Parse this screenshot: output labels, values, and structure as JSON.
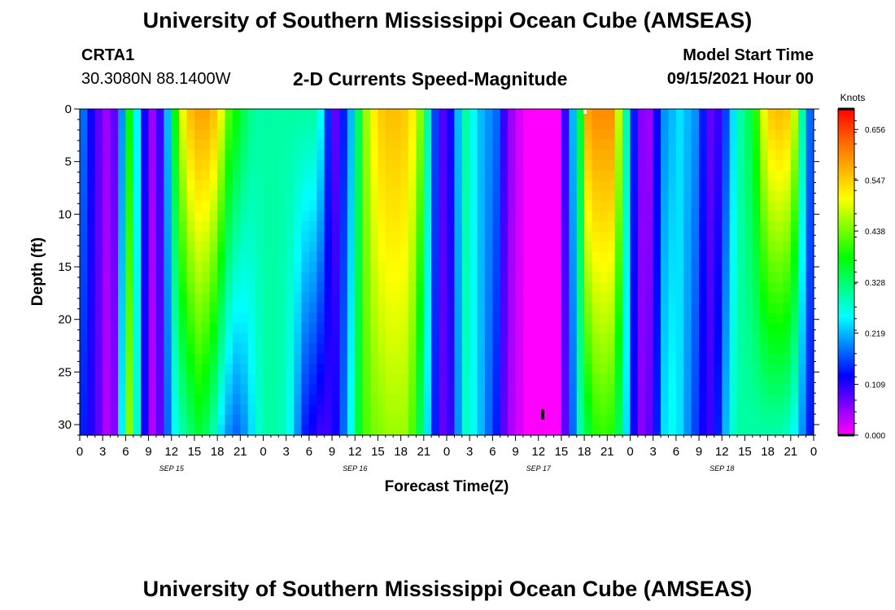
{
  "header": {
    "title": "University of Southern Mississippi Ocean Cube (AMSEAS)",
    "station": "CRTA1",
    "location": "30.3080N  88.1400W",
    "plot_title": "2-D Currents Speed-Magnitude",
    "model_start_label": "Model Start Time",
    "model_start_value": "09/15/2021 Hour 00"
  },
  "footer": {
    "title": "University of Southern Mississippi Ocean Cube (AMSEAS)"
  },
  "chart_data": {
    "type": "heatmap",
    "title": "2-D Currents Speed-Magnitude",
    "xlabel": "Forecast Time(Z)",
    "ylabel": "Depth (ft)",
    "colorbar_label": "Knots",
    "x_range_hours": [
      0,
      96
    ],
    "y_range_ft": [
      0,
      31
    ],
    "y_inverted": true,
    "x_tick_labels": [
      "0",
      "3",
      "6",
      "9",
      "12",
      "15",
      "18",
      "21",
      "0",
      "3",
      "6",
      "9",
      "12",
      "15",
      "18",
      "21",
      "0",
      "3",
      "6",
      "9",
      "12",
      "15",
      "18",
      "21",
      "0",
      "3",
      "6",
      "9",
      "12",
      "15",
      "18",
      "21",
      "0"
    ],
    "y_ticks": [
      0,
      5,
      10,
      15,
      20,
      25,
      30
    ],
    "date_labels": [
      {
        "label": "SEP 15",
        "hour": 12
      },
      {
        "label": "SEP 16",
        "hour": 36
      },
      {
        "label": "SEP 17",
        "hour": 60
      },
      {
        "label": "SEP 18",
        "hour": 84
      }
    ],
    "colorbar_ticks": [
      "0.000",
      "0.109",
      "0.219",
      "0.328",
      "0.438",
      "0.547",
      "0.656"
    ],
    "colorbar_range": [
      0,
      0.7
    ],
    "colorscale": [
      "#ff00ff",
      "#8000ff",
      "#0000ff",
      "#0080ff",
      "#00ffff",
      "#00ff80",
      "#00ff00",
      "#80ff00",
      "#ffff00",
      "#ffb000",
      "#ff6000",
      "#ff0000"
    ],
    "speed_hourly_surface": [
      0.18,
      0.12,
      0.08,
      0.05,
      0.08,
      0.2,
      0.38,
      0.25,
      0.12,
      0.05,
      0.1,
      0.22,
      0.38,
      0.5,
      0.56,
      0.58,
      0.58,
      0.56,
      0.5,
      0.42,
      0.38,
      0.34,
      0.31,
      0.3,
      0.3,
      0.3,
      0.3,
      0.3,
      0.3,
      0.3,
      0.3,
      0.26,
      0.15,
      0.08,
      0.14,
      0.22,
      0.34,
      0.46,
      0.52,
      0.55,
      0.56,
      0.56,
      0.55,
      0.52,
      0.45,
      0.3,
      0.16,
      0.09,
      0.12,
      0.22,
      0.3,
      0.26,
      0.22,
      0.2,
      0.18,
      0.1,
      0.05,
      0.02,
      0.0,
      0.0,
      0.0,
      0.0,
      0.0,
      0.1,
      0.22,
      0.36,
      0.58,
      0.6,
      0.6,
      0.6,
      0.48,
      0.3,
      0.14,
      0.06,
      0.05,
      0.12,
      0.2,
      0.22,
      0.24,
      0.22,
      0.2,
      0.14,
      0.08,
      0.1,
      0.16,
      0.24,
      0.3,
      0.34,
      0.4,
      0.5,
      0.55,
      0.56,
      0.55,
      0.48,
      0.3,
      0.18,
      0.15
    ],
    "speed_hourly_bottom": [
      0.14,
      0.11,
      0.08,
      0.04,
      0.06,
      0.25,
      0.45,
      0.28,
      0.12,
      0.04,
      0.08,
      0.18,
      0.26,
      0.3,
      0.33,
      0.36,
      0.34,
      0.3,
      0.24,
      0.2,
      0.18,
      0.2,
      0.24,
      0.28,
      0.3,
      0.3,
      0.29,
      0.26,
      0.2,
      0.14,
      0.12,
      0.1,
      0.1,
      0.12,
      0.18,
      0.26,
      0.36,
      0.42,
      0.44,
      0.45,
      0.46,
      0.46,
      0.46,
      0.42,
      0.34,
      0.24,
      0.14,
      0.08,
      0.1,
      0.2,
      0.28,
      0.26,
      0.22,
      0.18,
      0.14,
      0.08,
      0.04,
      0.02,
      0.0,
      0.0,
      0.0,
      0.0,
      0.0,
      0.08,
      0.18,
      0.3,
      0.36,
      0.4,
      0.41,
      0.4,
      0.34,
      0.24,
      0.12,
      0.06,
      0.08,
      0.14,
      0.24,
      0.26,
      0.24,
      0.2,
      0.16,
      0.12,
      0.1,
      0.14,
      0.22,
      0.28,
      0.3,
      0.3,
      0.3,
      0.3,
      0.3,
      0.3,
      0.29,
      0.26,
      0.2,
      0.14,
      0.12
    ]
  }
}
